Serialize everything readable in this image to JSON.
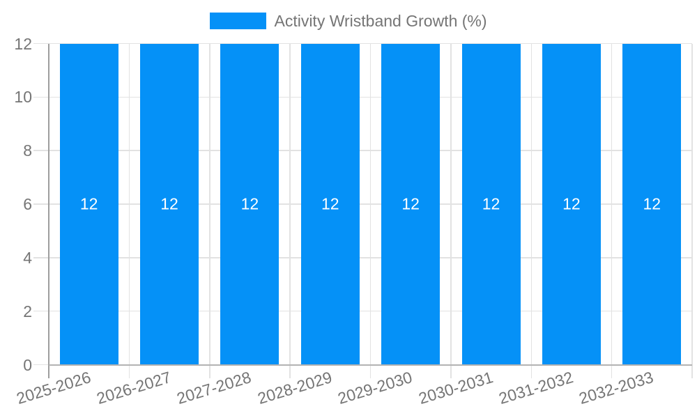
{
  "chart_data": {
    "type": "bar",
    "title": "Activity Wristband Growth (%)",
    "legend_position": "top",
    "series": [
      {
        "name": "Activity Wristband Growth (%)",
        "color": "#0591F7",
        "values": [
          12,
          12,
          12,
          12,
          12,
          12,
          12,
          12
        ]
      }
    ],
    "categories": [
      "2025-2026",
      "2026-2027",
      "2027-2028",
      "2028-2029",
      "2029-2030",
      "2030-2031",
      "2031-2032",
      "2032-2033"
    ],
    "bar_value_labels": [
      "12",
      "12",
      "12",
      "12",
      "12",
      "12",
      "12",
      "12"
    ],
    "ytick_labels": [
      "0",
      "2",
      "4",
      "6",
      "8",
      "10",
      "12"
    ],
    "yticks": [
      0,
      2,
      4,
      6,
      8,
      10,
      12
    ],
    "ylim": [
      0,
      12
    ],
    "xlabel": "",
    "ylabel": "",
    "grid": true,
    "colors": {
      "bar": "#0591F7",
      "axis_text": "#757575",
      "value_text": "#ffffff",
      "gridline": "#e2e2e2",
      "y_axis_line": "#9e9e9e",
      "x_axis_line": "#b3b3b3",
      "background": "#ffffff"
    }
  }
}
